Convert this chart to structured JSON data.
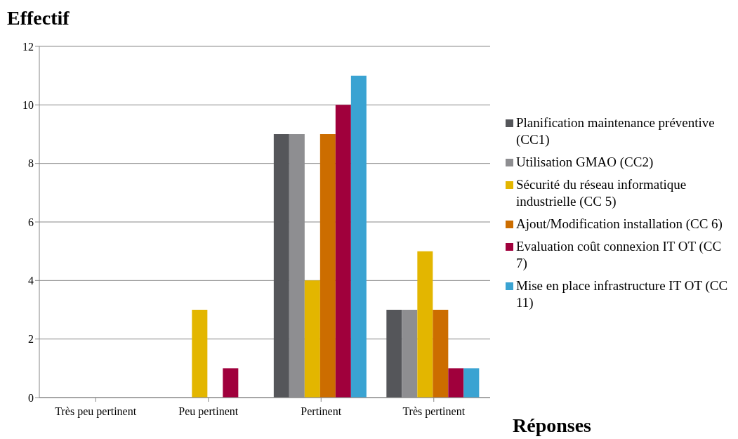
{
  "chart_data": {
    "type": "bar",
    "ylabel": "Effectif",
    "xlabel": "Réponses",
    "categories": [
      "Très peu pertinent",
      "Peu pertinent",
      "Pertinent",
      "Très pertinent"
    ],
    "series": [
      {
        "name": "Planification maintenance préventive (CC1)",
        "color": "#55565a",
        "values": [
          0,
          0,
          9,
          3
        ]
      },
      {
        "name": "Utilisation GMAO (CC2)",
        "color": "#8e8e91",
        "values": [
          0,
          0,
          9,
          3
        ]
      },
      {
        "name": "Sécurité du réseau informatique industrielle (CC 5)",
        "color": "#e3b600",
        "values": [
          0,
          3,
          4,
          5
        ]
      },
      {
        "name": "Ajout/Modification installation (CC 6)",
        "color": "#cc6d00",
        "values": [
          0,
          0,
          9,
          3
        ]
      },
      {
        "name": "Evaluation coût connexion IT OT (CC 7)",
        "color": "#a0003c",
        "values": [
          0,
          1,
          10,
          1
        ]
      },
      {
        "name": "Mise en place infrastructure IT OT (CC 11)",
        "color": "#3aa3d2",
        "values": [
          0,
          0,
          11,
          1
        ]
      }
    ],
    "ylim": [
      0,
      12
    ],
    "yticks": [
      0,
      2,
      4,
      6,
      8,
      10,
      12
    ],
    "grid": "y",
    "legend": "right"
  }
}
